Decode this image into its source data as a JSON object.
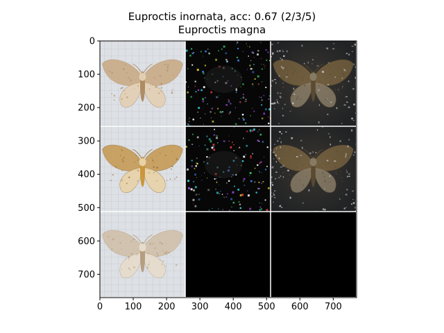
{
  "figure": {
    "title_line_1": "Euproctis inornata, acc: 0.67 (2/3/5)",
    "title_line_2": "Euproctis magna"
  },
  "chart_data": {
    "type": "image-grid",
    "title": "Euproctis inornata, acc: 0.67 (2/3/5)\nEuproctis magna",
    "xlim": [
      0,
      770
    ],
    "ylim": [
      770,
      0
    ],
    "x_ticks": [
      0,
      100,
      200,
      300,
      400,
      500,
      600,
      700
    ],
    "y_ticks": [
      0,
      100,
      200,
      300,
      400,
      500,
      600,
      700
    ],
    "grid": {
      "rows": 3,
      "cols": 3,
      "cell_size": 256,
      "separator_color": "#ffffff"
    },
    "panels": [
      {
        "row": 0,
        "col": 0,
        "content": "moth-photo",
        "tone": "light-brown"
      },
      {
        "row": 0,
        "col": 1,
        "content": "saliency-noise",
        "tone": "dark-colorful"
      },
      {
        "row": 0,
        "col": 2,
        "content": "saliency-overlay",
        "tone": "dark-moth"
      },
      {
        "row": 1,
        "col": 0,
        "content": "moth-photo",
        "tone": "golden-brown"
      },
      {
        "row": 1,
        "col": 1,
        "content": "saliency-noise",
        "tone": "dark-colorful"
      },
      {
        "row": 1,
        "col": 2,
        "content": "saliency-overlay",
        "tone": "dark-moth"
      },
      {
        "row": 2,
        "col": 0,
        "content": "moth-photo",
        "tone": "pale"
      },
      {
        "row": 2,
        "col": 1,
        "content": "empty",
        "tone": "black"
      },
      {
        "row": 2,
        "col": 2,
        "content": "empty",
        "tone": "black"
      }
    ]
  }
}
